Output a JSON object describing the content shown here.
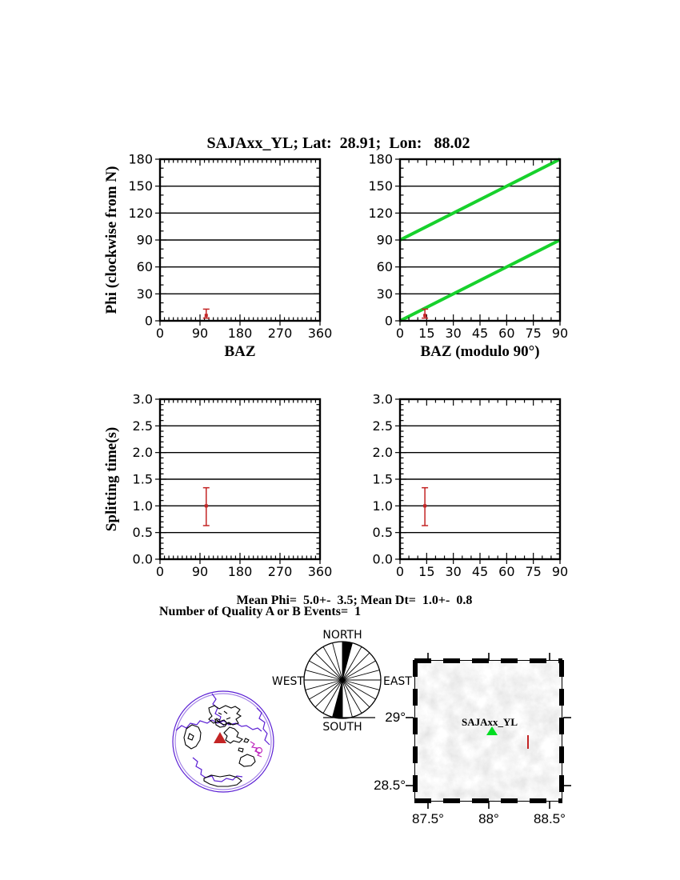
{
  "title": "SAJAxx_YL; Lat:  28.91;  Lon:   88.02",
  "stats": {
    "mean_line": "Mean Phi=  5.0+-  3.5; Mean Dt=  1.0+-  0.8",
    "events_line": "Number of Quality A or B Events=  1"
  },
  "colors": {
    "trend_green": "#17d12c",
    "error_red": "#c32424",
    "plate_purple": "#5b1fd4",
    "plate_magenta": "#bf2abf",
    "station_green": "#00dd22"
  },
  "chart_data": [
    {
      "id": "phi-vs-baz",
      "type": "scatter",
      "xlabel": "BAZ",
      "ylabel": "Phi (clockwise from N)",
      "xlim": [
        0,
        360
      ],
      "ylim": [
        0,
        180
      ],
      "xticks": [
        0,
        90,
        180,
        270,
        360
      ],
      "yticks": [
        0,
        30,
        60,
        90,
        120,
        150,
        180
      ],
      "ytick_labels": [
        "0",
        "30",
        "60",
        "90",
        "120",
        "150",
        "180"
      ],
      "xminor": 10,
      "yminor": 10,
      "grid": "horizontal",
      "points": [
        {
          "x": 104,
          "y": 6,
          "ylo": 3,
          "yhi": 13
        }
      ],
      "lines": []
    },
    {
      "id": "phi-vs-baz-mod90",
      "type": "scatter",
      "xlabel": "BAZ (modulo 90°)",
      "ylabel": "",
      "xlim": [
        0,
        90
      ],
      "ylim": [
        0,
        180
      ],
      "xticks": [
        0,
        15,
        30,
        45,
        60,
        75,
        90
      ],
      "yticks": [
        0,
        30,
        60,
        90,
        120,
        150,
        180
      ],
      "ytick_labels": [
        "0",
        "30",
        "60",
        "90",
        "120",
        "150",
        "180"
      ],
      "xminor": 5,
      "yminor": 10,
      "grid": "horizontal",
      "points": [
        {
          "x": 14,
          "y": 6,
          "ylo": 3,
          "yhi": 13
        }
      ],
      "lines": [
        [
          0,
          0,
          90,
          90
        ],
        [
          0,
          90,
          90,
          180
        ]
      ]
    },
    {
      "id": "dt-vs-baz",
      "type": "scatter",
      "xlabel": "",
      "ylabel": "Splitting time(s)",
      "xlim": [
        0,
        360
      ],
      "ylim": [
        0,
        3
      ],
      "xticks": [
        0,
        90,
        180,
        270,
        360
      ],
      "yticks": [
        0,
        0.5,
        1,
        1.5,
        2,
        2.5,
        3
      ],
      "ytick_labels": [
        "0.0",
        "0.5",
        "1.0",
        "1.5",
        "2.0",
        "2.5",
        "3.0"
      ],
      "xminor": 10,
      "yminor": 0.1,
      "grid": "horizontal",
      "points": [
        {
          "x": 104,
          "y": 1.0,
          "ylo": 0.63,
          "yhi": 1.34
        }
      ],
      "lines": []
    },
    {
      "id": "dt-vs-baz-mod90",
      "type": "scatter",
      "xlabel": "",
      "ylabel": "",
      "xlim": [
        0,
        90
      ],
      "ylim": [
        0,
        3
      ],
      "xticks": [
        0,
        15,
        30,
        45,
        60,
        75,
        90
      ],
      "yticks": [
        0,
        0.5,
        1,
        1.5,
        2,
        2.5,
        3
      ],
      "ytick_labels": [
        "0.0",
        "0.5",
        "1.0",
        "1.5",
        "2.0",
        "2.5",
        "3.0"
      ],
      "xminor": 5,
      "yminor": 0.1,
      "grid": "horizontal",
      "points": [
        {
          "x": 14,
          "y": 1.0,
          "ylo": 0.63,
          "yhi": 1.34
        }
      ],
      "lines": []
    }
  ],
  "rose": {
    "labels": {
      "north": "NORTH",
      "south": "SOUTH",
      "east": "EAST",
      "west": "WEST"
    },
    "sector_deg": 15,
    "filled_sectors": [
      [
        0,
        15
      ],
      [
        180,
        195
      ]
    ]
  },
  "map": {
    "station_label": "SAJAxx_YL",
    "x_labels": [
      "87.5°",
      "88°",
      "88.5°"
    ],
    "y_labels": [
      "29°",
      "28.5°"
    ]
  }
}
